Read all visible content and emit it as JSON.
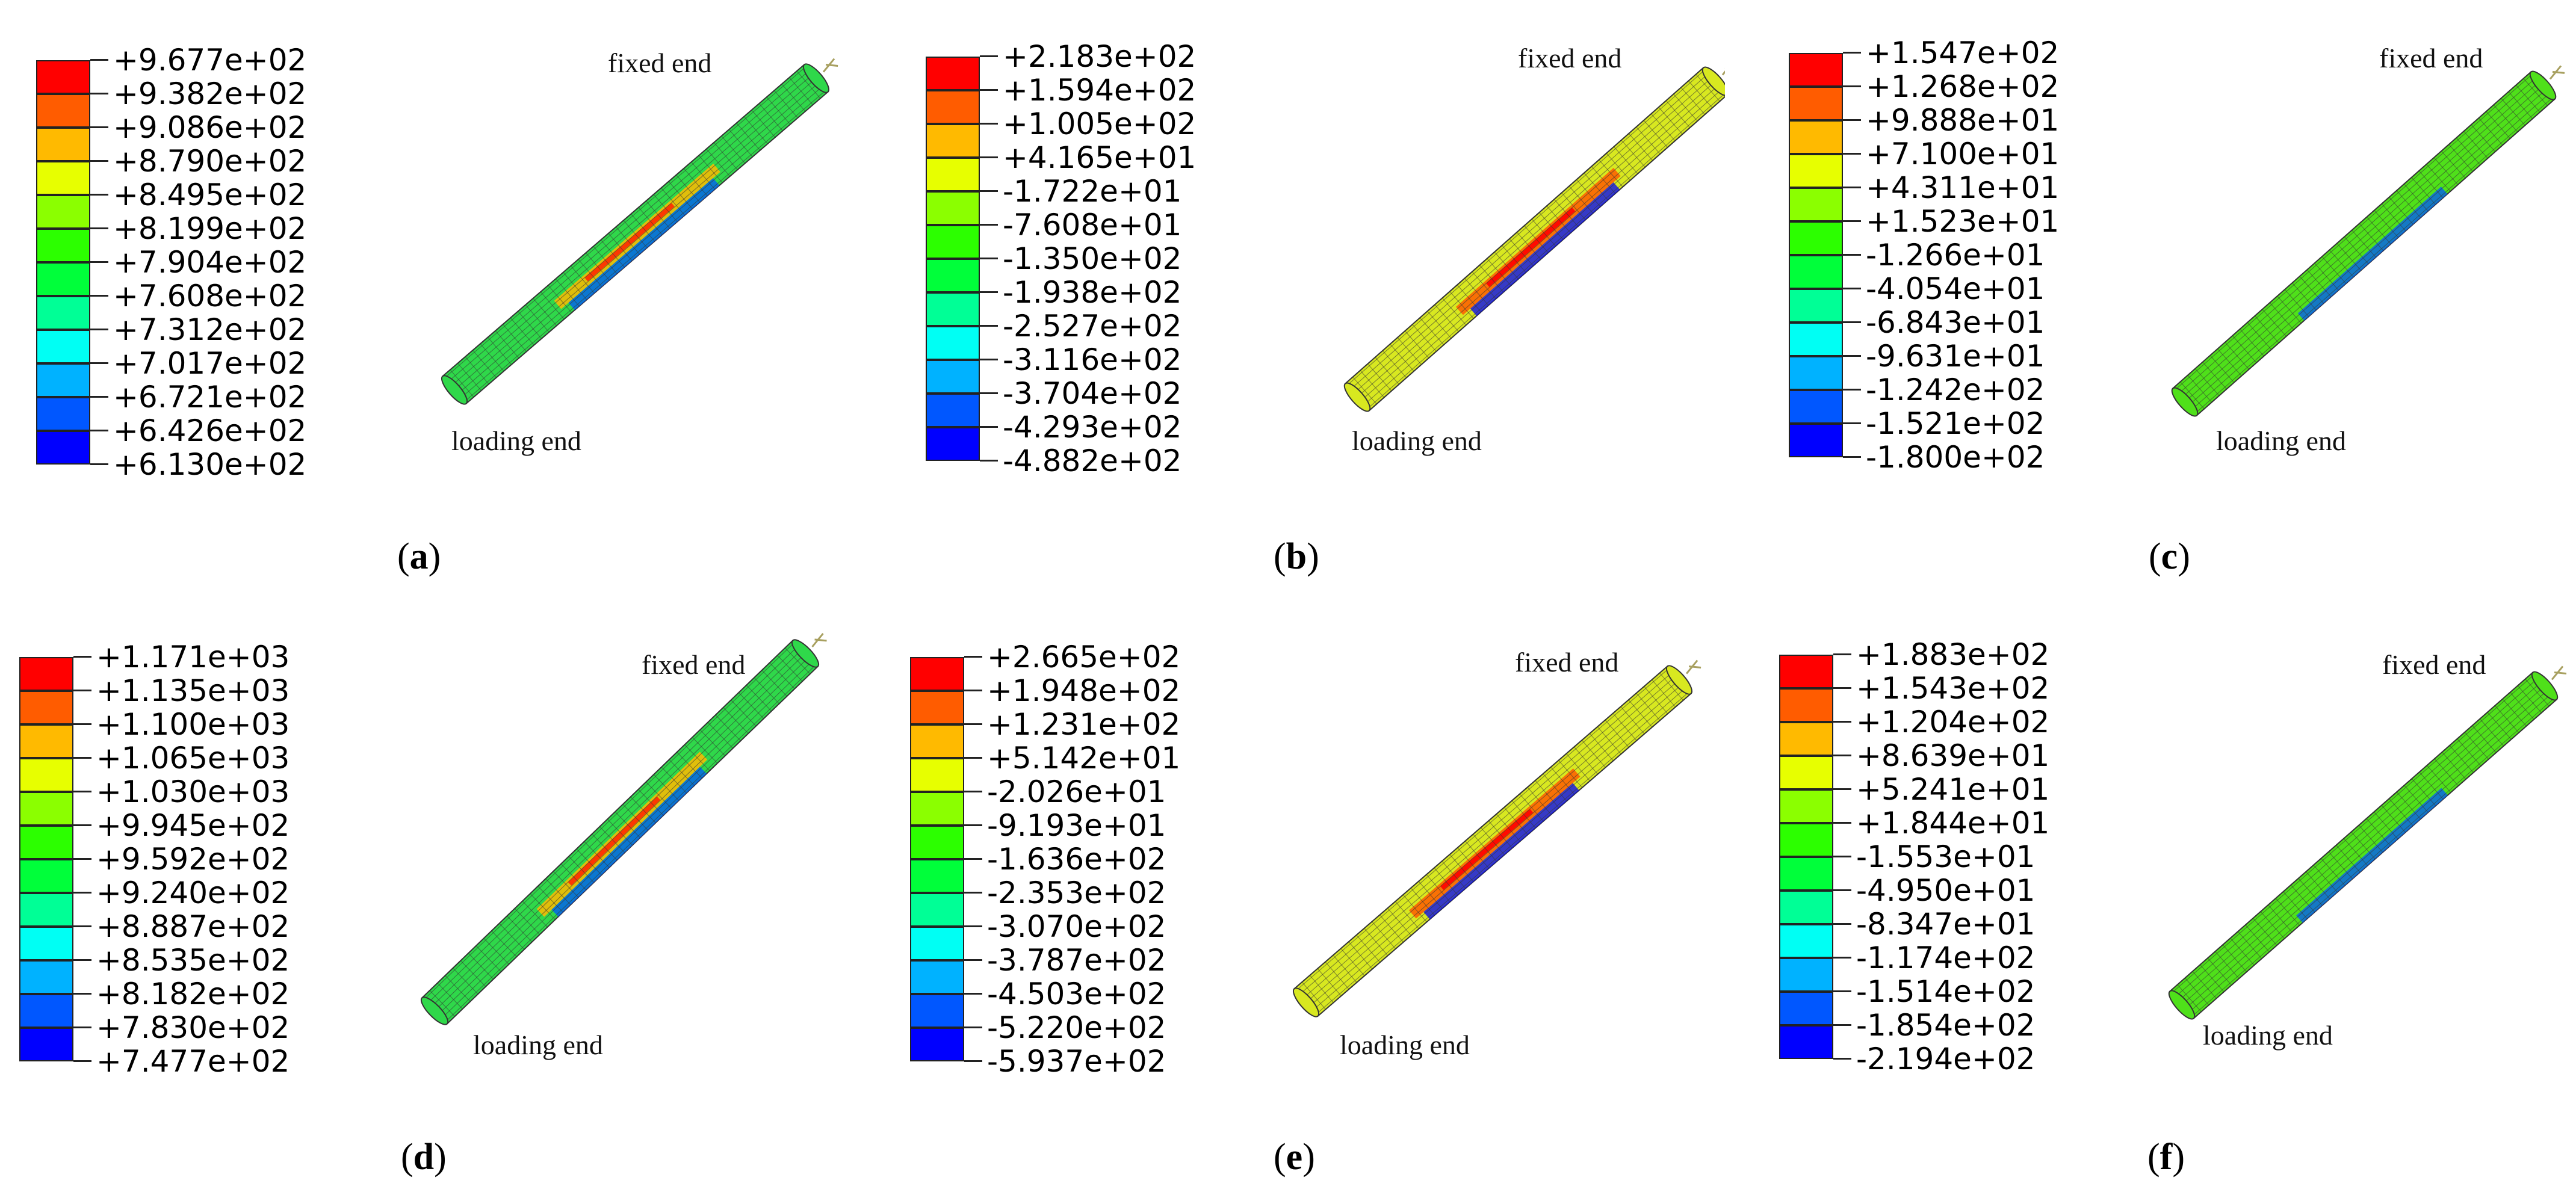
{
  "colors": {
    "palette": [
      "#ff0000",
      "#ff5c00",
      "#ffba00",
      "#e7ff00",
      "#8bff00",
      "#2cff00",
      "#00ff3a",
      "#00ff96",
      "#00fff4",
      "#00b2ff",
      "#0057ff",
      "#0000ff"
    ]
  },
  "panels": [
    {
      "letter": "a",
      "legend_values": [
        "+9.677e+02",
        "+9.382e+02",
        "+9.086e+02",
        "+8.790e+02",
        "+8.495e+02",
        "+8.199e+02",
        "+7.904e+02",
        "+7.608e+02",
        "+7.312e+02",
        "+7.017e+02",
        "+6.721e+02",
        "+6.426e+02",
        "+6.130e+02"
      ],
      "fixed_label": "fixed end",
      "loading_label": "loading end",
      "body_color": "#2fd84a",
      "stripe_color": "#ffba00",
      "stripe_core": "#ff2a00",
      "shadow_color": "#0057ff"
    },
    {
      "letter": "b",
      "legend_values": [
        "+2.183e+02",
        "+1.594e+02",
        "+1.005e+02",
        "+4.165e+01",
        "-1.722e+01",
        "-7.608e+01",
        "-1.350e+02",
        "-1.938e+02",
        "-2.527e+02",
        "-3.116e+02",
        "-3.704e+02",
        "-4.293e+02",
        "-4.882e+02"
      ],
      "fixed_label": "fixed end",
      "loading_label": "loading end",
      "body_color": "#d8e820",
      "stripe_color": "#ff5c00",
      "stripe_core": "#ff0000",
      "shadow_color": "#0000ff"
    },
    {
      "letter": "c",
      "legend_values": [
        "+1.547e+02",
        "+1.268e+02",
        "+9.888e+01",
        "+7.100e+01",
        "+4.311e+01",
        "+1.523e+01",
        "-1.266e+01",
        "-4.054e+01",
        "-6.843e+01",
        "-9.631e+01",
        "-1.242e+02",
        "-1.521e+02",
        "-1.800e+02"
      ],
      "fixed_label": "fixed end",
      "loading_label": "loading end",
      "body_color": "#4fe01a",
      "stripe_color": "#4fe01a",
      "stripe_core": "#4fe01a",
      "shadow_color": "#0057ff"
    },
    {
      "letter": "d",
      "legend_values": [
        "+1.171e+03",
        "+1.135e+03",
        "+1.100e+03",
        "+1.065e+03",
        "+1.030e+03",
        "+9.945e+02",
        "+9.592e+02",
        "+9.240e+02",
        "+8.887e+02",
        "+8.535e+02",
        "+8.182e+02",
        "+7.830e+02",
        "+7.477e+02"
      ],
      "fixed_label": "fixed end",
      "loading_label": "loading end",
      "body_color": "#2fd84a",
      "stripe_color": "#ffba00",
      "stripe_core": "#ff2a00",
      "shadow_color": "#0057ff"
    },
    {
      "letter": "e",
      "legend_values": [
        "+2.665e+02",
        "+1.948e+02",
        "+1.231e+02",
        "+5.142e+01",
        "-2.026e+01",
        "-9.193e+01",
        "-1.636e+02",
        "-2.353e+02",
        "-3.070e+02",
        "-3.787e+02",
        "-4.503e+02",
        "-5.220e+02",
        "-5.937e+02"
      ],
      "fixed_label": "fixed end",
      "loading_label": "loading end",
      "body_color": "#d8e820",
      "stripe_color": "#ff5c00",
      "stripe_core": "#ff0000",
      "shadow_color": "#0000ff"
    },
    {
      "letter": "f",
      "legend_values": [
        "+1.883e+02",
        "+1.543e+02",
        "+1.204e+02",
        "+8.639e+01",
        "+5.241e+01",
        "+1.844e+01",
        "-1.553e+01",
        "-4.950e+01",
        "-8.347e+01",
        "-1.174e+02",
        "-1.514e+02",
        "-1.854e+02",
        "-2.194e+02"
      ],
      "fixed_label": "fixed end",
      "loading_label": "loading end",
      "body_color": "#4fe01a",
      "stripe_color": "#4fe01a",
      "stripe_core": "#4fe01a",
      "shadow_color": "#0057ff"
    }
  ]
}
